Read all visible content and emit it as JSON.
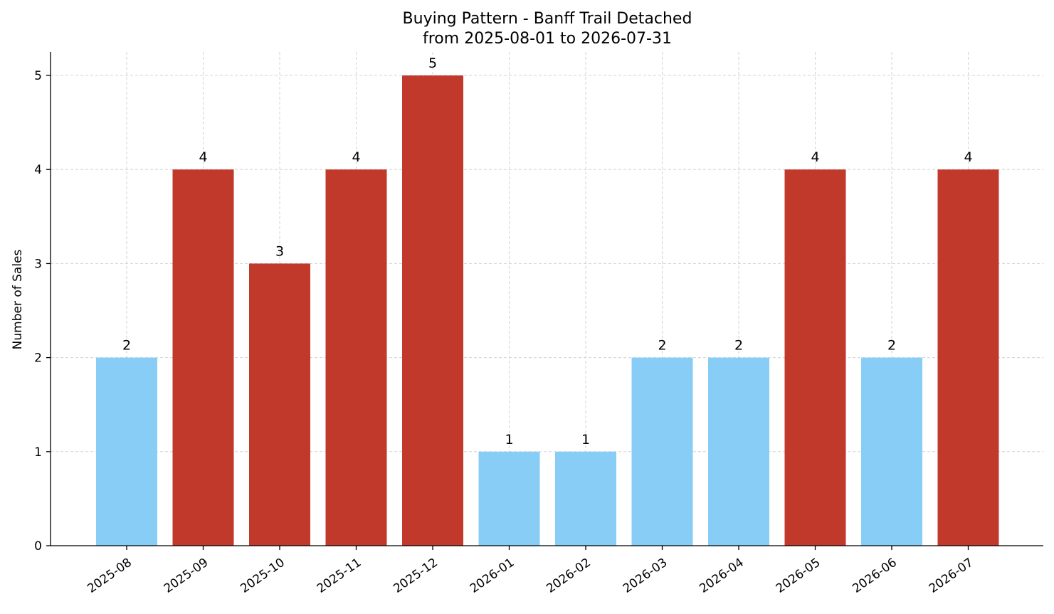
{
  "chart_data": {
    "type": "bar",
    "title": "Buying Pattern - Banff Trail Detached",
    "subtitle": "from 2025-08-01 to 2026-07-31",
    "xlabel": "",
    "ylabel": "Number of Sales",
    "categories": [
      "2025-08",
      "2025-09",
      "2025-10",
      "2025-11",
      "2025-12",
      "2026-01",
      "2026-02",
      "2026-03",
      "2026-04",
      "2026-05",
      "2026-06",
      "2026-07"
    ],
    "values": [
      2,
      4,
      3,
      4,
      5,
      1,
      1,
      2,
      2,
      4,
      2,
      4
    ],
    "bar_colors": [
      "#87cdf6",
      "#c0392b",
      "#c0392b",
      "#c0392b",
      "#c0392b",
      "#87cdf6",
      "#87cdf6",
      "#87cdf6",
      "#87cdf6",
      "#c0392b",
      "#87cdf6",
      "#c0392b"
    ],
    "yticks": [
      0,
      1,
      2,
      3,
      4,
      5
    ],
    "ylim": [
      0,
      5.25
    ],
    "grid": true,
    "data_labels": true
  }
}
